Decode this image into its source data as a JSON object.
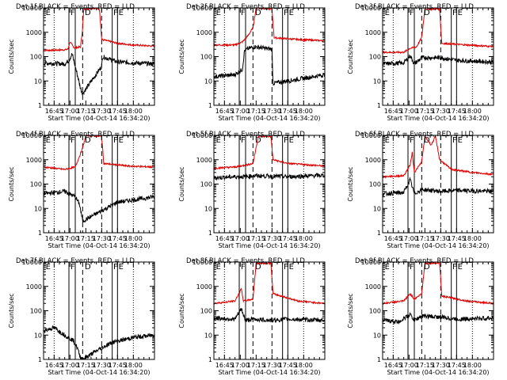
{
  "chart_data": {
    "type": "line",
    "layout": "3x3 grid of log-scale time series",
    "legend_text": "BLACK = Events, RED = LLD",
    "xlabel": "Start Time (04-Oct-14 16:34:20)",
    "ylabel": "Counts/sec",
    "xticks": [
      "16:45",
      "17:00",
      "17:15",
      "17:30",
      "17:45",
      "18:00"
    ],
    "yticks": [
      "1",
      "10",
      "100",
      "1000",
      "10000"
    ],
    "ylim": [
      1,
      10000
    ],
    "xlim_minutes": [
      -10,
      95
    ],
    "region_lines_minutes": {
      "dotted": [
        0,
        75
      ],
      "solid": [
        14,
        20,
        55,
        60
      ],
      "dashed": [
        27,
        45
      ]
    },
    "region_letters": [
      "E",
      "F",
      "D",
      "F",
      "E"
    ],
    "panels": [
      {
        "title": "Det 1f",
        "series": [
          {
            "name": "LLD",
            "values": [
              {
                "t": -10,
                "v": 180
              },
              {
                "t": 10,
                "v": 190
              },
              {
                "t": 13,
                "v": 200
              },
              {
                "t": 15,
                "v": 400
              },
              {
                "t": 19,
                "v": 230
              },
              {
                "t": 25,
                "v": 250
              },
              {
                "t": 27,
                "v": 1500
              },
              {
                "t": 28,
                "v": 9000
              },
              {
                "t": 38,
                "v": 10000
              },
              {
                "t": 43,
                "v": 9000
              },
              {
                "t": 45,
                "v": 500
              },
              {
                "t": 55,
                "v": 400
              },
              {
                "t": 60,
                "v": 350
              },
              {
                "t": 75,
                "v": 300
              },
              {
                "t": 95,
                "v": 270
              }
            ]
          },
          {
            "name": "Events",
            "values": [
              {
                "t": -10,
                "v": 55
              },
              {
                "t": 10,
                "v": 50
              },
              {
                "t": 14,
                "v": 70
              },
              {
                "t": 17,
                "v": 130
              },
              {
                "t": 20,
                "v": 40
              },
              {
                "t": 25,
                "v": 5
              },
              {
                "t": 27,
                "v": 3
              },
              {
                "t": 45,
                "v": 40
              },
              {
                "t": 46,
                "v": 100
              },
              {
                "t": 60,
                "v": 60
              },
              {
                "t": 95,
                "v": 50
              }
            ]
          }
        ]
      },
      {
        "title": "Det 2f",
        "series": [
          {
            "name": "LLD",
            "values": [
              {
                "t": -10,
                "v": 300
              },
              {
                "t": 10,
                "v": 300
              },
              {
                "t": 17,
                "v": 400
              },
              {
                "t": 22,
                "v": 700
              },
              {
                "t": 27,
                "v": 1500
              },
              {
                "t": 30,
                "v": 10000
              },
              {
                "t": 45,
                "v": 9000
              },
              {
                "t": 47,
                "v": 600
              },
              {
                "t": 70,
                "v": 500
              },
              {
                "t": 95,
                "v": 450
              }
            ]
          },
          {
            "name": "Events",
            "values": [
              {
                "t": -10,
                "v": 15
              },
              {
                "t": 10,
                "v": 18
              },
              {
                "t": 17,
                "v": 30
              },
              {
                "t": 19,
                "v": 180
              },
              {
                "t": 27,
                "v": 250
              },
              {
                "t": 30,
                "v": 250
              },
              {
                "t": 45,
                "v": 200
              },
              {
                "t": 46,
                "v": 8
              },
              {
                "t": 60,
                "v": 10
              },
              {
                "t": 95,
                "v": 18
              }
            ]
          }
        ]
      },
      {
        "title": "Det 3f",
        "series": [
          {
            "name": "LLD",
            "values": [
              {
                "t": -10,
                "v": 150
              },
              {
                "t": 10,
                "v": 150
              },
              {
                "t": 16,
                "v": 220
              },
              {
                "t": 22,
                "v": 250
              },
              {
                "t": 27,
                "v": 600
              },
              {
                "t": 30,
                "v": 9000
              },
              {
                "t": 44,
                "v": 9000
              },
              {
                "t": 46,
                "v": 350
              },
              {
                "t": 70,
                "v": 300
              },
              {
                "t": 95,
                "v": 260
              }
            ]
          },
          {
            "name": "Events",
            "values": [
              {
                "t": -10,
                "v": 50
              },
              {
                "t": 10,
                "v": 55
              },
              {
                "t": 16,
                "v": 110
              },
              {
                "t": 20,
                "v": 50
              },
              {
                "t": 27,
                "v": 90
              },
              {
                "t": 45,
                "v": 90
              },
              {
                "t": 60,
                "v": 70
              },
              {
                "t": 95,
                "v": 60
              }
            ]
          }
        ]
      },
      {
        "title": "Det 4f",
        "series": [
          {
            "name": "LLD",
            "values": [
              {
                "t": -10,
                "v": 500
              },
              {
                "t": 10,
                "v": 400
              },
              {
                "t": 20,
                "v": 500
              },
              {
                "t": 27,
                "v": 3000
              },
              {
                "t": 30,
                "v": 10000
              },
              {
                "t": 45,
                "v": 9000
              },
              {
                "t": 47,
                "v": 700
              },
              {
                "t": 70,
                "v": 550
              },
              {
                "t": 95,
                "v": 500
              }
            ]
          },
          {
            "name": "Events",
            "values": [
              {
                "t": -10,
                "v": 40
              },
              {
                "t": 10,
                "v": 50
              },
              {
                "t": 20,
                "v": 30
              },
              {
                "t": 24,
                "v": 15
              },
              {
                "t": 27,
                "v": 3
              },
              {
                "t": 45,
                "v": 8
              },
              {
                "t": 60,
                "v": 18
              },
              {
                "t": 95,
                "v": 30
              }
            ]
          }
        ]
      },
      {
        "title": "Det 5f",
        "series": [
          {
            "name": "LLD",
            "values": [
              {
                "t": -10,
                "v": 450
              },
              {
                "t": 10,
                "v": 500
              },
              {
                "t": 20,
                "v": 600
              },
              {
                "t": 27,
                "v": 700
              },
              {
                "t": 32,
                "v": 9000
              },
              {
                "t": 44,
                "v": 9000
              },
              {
                "t": 46,
                "v": 1000
              },
              {
                "t": 60,
                "v": 700
              },
              {
                "t": 95,
                "v": 550
              }
            ]
          },
          {
            "name": "Events",
            "values": [
              {
                "t": -10,
                "v": 180
              },
              {
                "t": 10,
                "v": 200
              },
              {
                "t": 20,
                "v": 200
              },
              {
                "t": 27,
                "v": 220
              },
              {
                "t": 45,
                "v": 210
              },
              {
                "t": 60,
                "v": 200
              },
              {
                "t": 95,
                "v": 230
              }
            ]
          }
        ]
      },
      {
        "title": "Det 6f",
        "series": [
          {
            "name": "LLD",
            "values": [
              {
                "t": -10,
                "v": 200
              },
              {
                "t": 10,
                "v": 220
              },
              {
                "t": 16,
                "v": 600
              },
              {
                "t": 18,
                "v": 2000
              },
              {
                "t": 20,
                "v": 300
              },
              {
                "t": 27,
                "v": 800
              },
              {
                "t": 30,
                "v": 9000
              },
              {
                "t": 36,
                "v": 4000
              },
              {
                "t": 40,
                "v": 9000
              },
              {
                "t": 44,
                "v": 1000
              },
              {
                "t": 55,
                "v": 400
              },
              {
                "t": 75,
                "v": 300
              },
              {
                "t": 95,
                "v": 250
              }
            ]
          },
          {
            "name": "Events",
            "values": [
              {
                "t": -10,
                "v": 40
              },
              {
                "t": 10,
                "v": 45
              },
              {
                "t": 16,
                "v": 150
              },
              {
                "t": 20,
                "v": 40
              },
              {
                "t": 27,
                "v": 60
              },
              {
                "t": 45,
                "v": 50
              },
              {
                "t": 60,
                "v": 55
              },
              {
                "t": 95,
                "v": 50
              }
            ]
          }
        ]
      },
      {
        "title": "Det 7f",
        "series": [
          {
            "name": "Events",
            "values": [
              {
                "t": -10,
                "v": 15
              },
              {
                "t": 0,
                "v": 20
              },
              {
                "t": 10,
                "v": 10
              },
              {
                "t": 18,
                "v": 6
              },
              {
                "t": 22,
                "v": 3
              },
              {
                "t": 24,
                "v": 1.5
              },
              {
                "t": 27,
                "v": 1
              },
              {
                "t": 45,
                "v": 3
              },
              {
                "t": 55,
                "v": 5
              },
              {
                "t": 75,
                "v": 8
              },
              {
                "t": 95,
                "v": 10
              }
            ]
          }
        ]
      },
      {
        "title": "Det 8f",
        "series": [
          {
            "name": "LLD",
            "values": [
              {
                "t": -10,
                "v": 200
              },
              {
                "t": 10,
                "v": 250
              },
              {
                "t": 16,
                "v": 800
              },
              {
                "t": 18,
                "v": 250
              },
              {
                "t": 27,
                "v": 300
              },
              {
                "t": 30,
                "v": 9000
              },
              {
                "t": 44,
                "v": 9000
              },
              {
                "t": 46,
                "v": 500
              },
              {
                "t": 70,
                "v": 250
              },
              {
                "t": 95,
                "v": 200
              }
            ]
          },
          {
            "name": "Events",
            "values": [
              {
                "t": -10,
                "v": 50
              },
              {
                "t": 10,
                "v": 45
              },
              {
                "t": 16,
                "v": 120
              },
              {
                "t": 20,
                "v": 40
              },
              {
                "t": 27,
                "v": 45
              },
              {
                "t": 45,
                "v": 40
              },
              {
                "t": 60,
                "v": 45
              },
              {
                "t": 95,
                "v": 40
              }
            ]
          }
        ]
      },
      {
        "title": "Det 9f",
        "series": [
          {
            "name": "LLD",
            "values": [
              {
                "t": -10,
                "v": 200
              },
              {
                "t": 10,
                "v": 250
              },
              {
                "t": 16,
                "v": 500
              },
              {
                "t": 20,
                "v": 300
              },
              {
                "t": 27,
                "v": 500
              },
              {
                "t": 30,
                "v": 9000
              },
              {
                "t": 44,
                "v": 9000
              },
              {
                "t": 46,
                "v": 400
              },
              {
                "t": 70,
                "v": 250
              },
              {
                "t": 95,
                "v": 200
              }
            ]
          },
          {
            "name": "Events",
            "values": [
              {
                "t": -10,
                "v": 40
              },
              {
                "t": 5,
                "v": 35
              },
              {
                "t": 16,
                "v": 70
              },
              {
                "t": 20,
                "v": 40
              },
              {
                "t": 27,
                "v": 60
              },
              {
                "t": 45,
                "v": 55
              },
              {
                "t": 60,
                "v": 45
              },
              {
                "t": 95,
                "v": 50
              }
            ]
          }
        ]
      }
    ]
  }
}
